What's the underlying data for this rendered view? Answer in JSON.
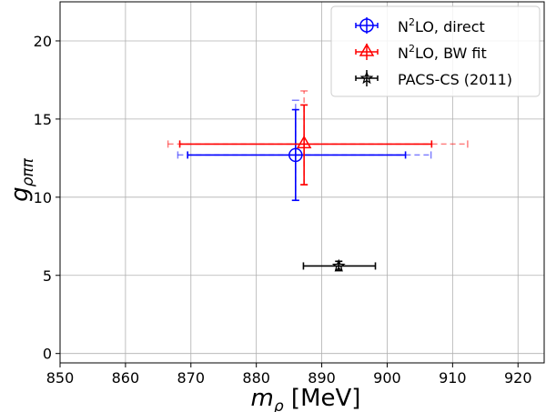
{
  "chart_data": {
    "type": "scatter",
    "xlabel": {
      "symbol": "m",
      "sub": "ρ",
      "unit": " [MeV]"
    },
    "ylabel": {
      "symbol": "g",
      "sub": "ρππ"
    },
    "xlim": [
      850,
      924
    ],
    "ylim": [
      -0.6,
      22.5
    ],
    "xticks": [
      850,
      860,
      870,
      880,
      890,
      900,
      910,
      920
    ],
    "yticks": [
      0,
      5,
      10,
      15,
      20
    ],
    "grid": true,
    "legend_position": "top-right",
    "series": [
      {
        "name_main": "N",
        "name_sup": "2",
        "name_rest": "LO, direct",
        "color": "#0000ff",
        "marker": "circle",
        "x": 886.0,
        "y": 12.7,
        "xerr": [
          869.5,
          902.8
        ],
        "yerr": [
          9.8,
          15.6
        ],
        "xerr_sys": [
          868.0,
          906.7
        ],
        "yerr_sys": [
          9.8,
          16.2
        ]
      },
      {
        "name_main": "N",
        "name_sup": "2",
        "name_rest": "LO, BW fit",
        "color": "#ff0000",
        "marker": "triangle",
        "x": 887.3,
        "y": 13.4,
        "xerr": [
          868.3,
          906.8
        ],
        "yerr": [
          10.8,
          15.9
        ],
        "xerr_sys": [
          866.5,
          912.3
        ],
        "yerr_sys": [
          10.8,
          16.8
        ]
      },
      {
        "name_main": "PACS-CS (2011)",
        "name_sup": "",
        "name_rest": "",
        "color": "#000000",
        "marker": "star",
        "x": 892.6,
        "y": 5.6,
        "xerr": [
          887.2,
          898.2
        ],
        "yerr": [
          5.3,
          5.9
        ],
        "xerr_sys": null,
        "yerr_sys": null
      }
    ]
  }
}
